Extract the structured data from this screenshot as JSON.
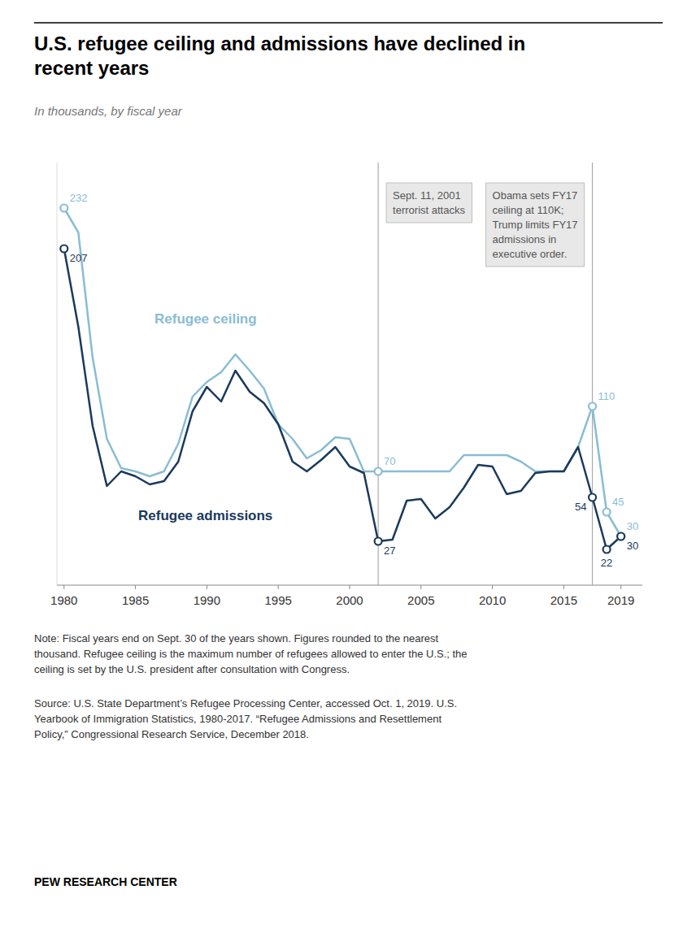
{
  "chart_data": {
    "type": "line",
    "title": "U.S. refugee ceiling and admissions have declined in\nrecent years",
    "subtitle": "In thousands, by fiscal year",
    "x": [
      1980,
      1981,
      1982,
      1983,
      1984,
      1985,
      1986,
      1987,
      1988,
      1989,
      1990,
      1991,
      1992,
      1993,
      1994,
      1995,
      1996,
      1997,
      1998,
      1999,
      2000,
      2001,
      2002,
      2003,
      2004,
      2005,
      2006,
      2007,
      2008,
      2009,
      2010,
      2011,
      2012,
      2013,
      2014,
      2015,
      2016,
      2017,
      2018,
      2019
    ],
    "series": [
      {
        "name": "Refugee ceiling",
        "color": "#89bdd3",
        "marker": "circle",
        "values": [
          232,
          217,
          140,
          90,
          72,
          70,
          67,
          70,
          87,
          116,
          125,
          131,
          142,
          132,
          121,
          99,
          90,
          78,
          83,
          91,
          90,
          70,
          70,
          70,
          70,
          70,
          70,
          70,
          80,
          80,
          80,
          80,
          76,
          70,
          70,
          70,
          85,
          110,
          45,
          30
        ],
        "value_labels": [
          "232",
          null,
          null,
          null,
          null,
          null,
          null,
          null,
          null,
          null,
          null,
          null,
          null,
          null,
          null,
          null,
          null,
          null,
          null,
          null,
          null,
          null,
          "70",
          null,
          null,
          null,
          null,
          null,
          null,
          null,
          null,
          null,
          null,
          null,
          null,
          null,
          null,
          "110",
          "45",
          "30"
        ]
      },
      {
        "name": "Refugee admissions",
        "color": "#1a3a5c",
        "marker": "circle",
        "values": [
          207,
          159,
          98,
          61,
          70,
          67,
          62,
          64,
          76,
          107,
          122,
          113,
          132,
          119,
          112,
          99,
          76,
          70,
          77,
          85,
          73,
          69,
          27,
          28,
          52,
          53,
          41,
          48,
          60,
          74,
          73,
          56,
          58,
          69,
          70,
          70,
          85,
          54,
          22,
          30
        ],
        "value_labels": [
          "207",
          null,
          null,
          null,
          null,
          null,
          null,
          null,
          null,
          null,
          null,
          null,
          null,
          null,
          null,
          null,
          null,
          null,
          null,
          null,
          null,
          null,
          "27",
          null,
          null,
          null,
          null,
          null,
          null,
          null,
          null,
          null,
          null,
          null,
          null,
          null,
          null,
          "54",
          "22",
          "30"
        ]
      }
    ],
    "xlim": [
      1979.5,
      2020.5
    ],
    "ylim": [
      0,
      260
    ],
    "xticks": [
      1980,
      1985,
      1990,
      1995,
      2000,
      2005,
      2010,
      2015,
      2019
    ],
    "tick_labels": "x",
    "grid": false,
    "annotations": [
      {
        "text": "Sept. 11, 2001\nterrorist attacks",
        "x": 2002
      },
      {
        "text": "Obama sets FY17\nceiling at 110K;\nTrump limits FY17\nadmissions in\nexecutive order.",
        "x": 2017
      }
    ],
    "note": "Note: Fiscal years end on Sept. 30 of the years shown. Figures rounded to the nearest\nthousand. Refugee ceiling is the maximum number of refugees allowed to enter the U.S.; the\nceiling is set by the U.S. president after consultation with Congress.",
    "source": "Source: U.S. State Department’s Refugee Processing Center, accessed Oct. 1, 2019. U.S.\nYearbook of Immigration Statistics, 1980-2017. “Refugee Admissions and Resettlement\nPolicy,” Congressional Research Service, December 2018.",
    "credit": "PEW RESEARCH CENTER"
  }
}
